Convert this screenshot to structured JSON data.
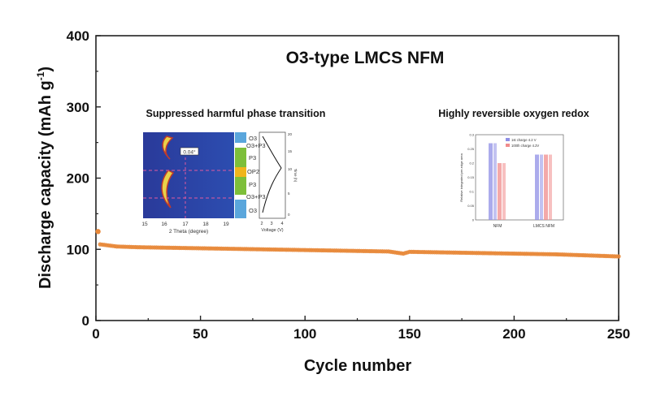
{
  "chart_data": {
    "type": "scatter",
    "title": "O3-type LMCS NFM",
    "xlabel": "Cycle number",
    "ylabel": "Discharge capacity (mAh g",
    "ylabel_sup": "-1",
    "ylabel_close": ")",
    "xlim": [
      0,
      250
    ],
    "ylim": [
      0,
      400
    ],
    "xticks": [
      "0",
      "50",
      "100",
      "150",
      "200",
      "250"
    ],
    "yticks": [
      "0",
      "100",
      "200",
      "300",
      "400"
    ],
    "grid": false,
    "color": "#e8883a",
    "series": [
      {
        "first_point": {
          "x": 1,
          "y": 125
        },
        "x": [
          2,
          10,
          20,
          30,
          40,
          50,
          60,
          70,
          80,
          90,
          100,
          110,
          120,
          130,
          140,
          147,
          150,
          160,
          170,
          180,
          190,
          200,
          210,
          220,
          230,
          240,
          250
        ],
        "y": [
          107,
          104,
          103,
          102.5,
          102,
          101.5,
          101,
          100.5,
          100,
          99.5,
          99,
          98.5,
          98,
          97.5,
          97,
          94,
          96.5,
          96,
          95.5,
          95,
          94.5,
          94,
          93.5,
          93,
          92,
          91,
          90
        ]
      }
    ]
  },
  "insets": {
    "left": {
      "title": "Suppressed harmful phase transition",
      "xlabel": "2 Theta (degree)",
      "xticks": [
        "16",
        "17",
        "18",
        "19"
      ],
      "first_xtick": "15",
      "mid_label": "0.04°",
      "phases": [
        "O3",
        "O3+P3",
        "P3",
        "OP2",
        "P3",
        "O3+P3",
        "O3"
      ],
      "voltage_label": "Voltage (V)",
      "voltage_ticks": [
        "2",
        "3",
        "4"
      ],
      "time_label": "Time (h)",
      "time_ticks": [
        "20",
        "15",
        "10",
        "5",
        "0"
      ]
    },
    "right": {
      "title": "Highly reversible oxygen redox",
      "legend": [
        "1st charge 4.2 V",
        "100th charge 4.2V"
      ],
      "categories": [
        "NFM",
        "LMCS NFM"
      ],
      "ylabel": "Relative integrated pre-edge area",
      "yticks": [
        "0.3",
        "0.25",
        "0.2",
        "0.15",
        "0.1",
        "0.05",
        "0"
      ],
      "colors": [
        "#8f8fe6",
        "#f08c8c"
      ],
      "values": {
        "NFM": [
          0.27,
          0.2
        ],
        "LMCS NFM": [
          0.23,
          0.23
        ]
      }
    }
  }
}
